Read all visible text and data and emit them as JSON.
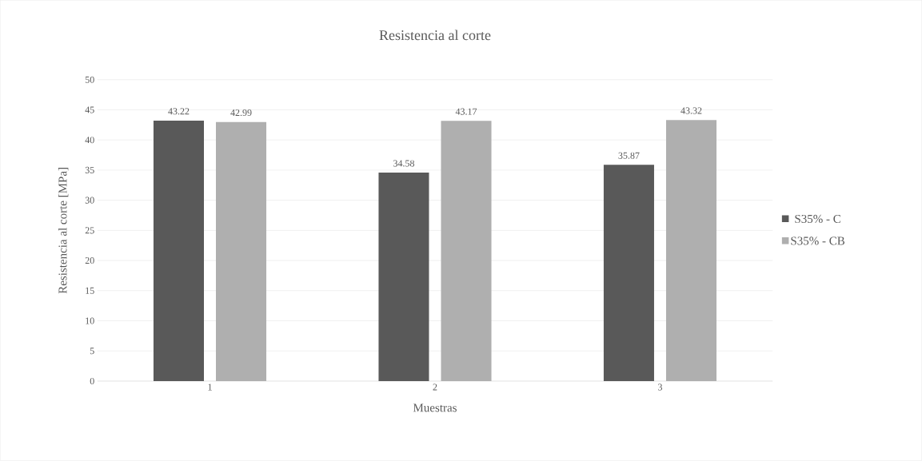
{
  "chart_data": {
    "type": "bar",
    "title": "Resistencia al corte",
    "xlabel": "Muestras",
    "ylabel": "Resistencia al corte [MPa]",
    "categories": [
      "1",
      "2",
      "3"
    ],
    "series": [
      {
        "name": "S35% - C",
        "color": "#595959",
        "values": [
          43.22,
          34.58,
          35.87
        ]
      },
      {
        "name": "S35% - CB",
        "color": "#afafaf",
        "values": [
          42.99,
          43.17,
          43.32
        ]
      }
    ],
    "ylim": [
      0,
      50
    ],
    "yticks": [
      0,
      5,
      10,
      15,
      20,
      25,
      30,
      35,
      40,
      45,
      50
    ],
    "grid": "y",
    "legend": "right",
    "data_labels": true
  }
}
